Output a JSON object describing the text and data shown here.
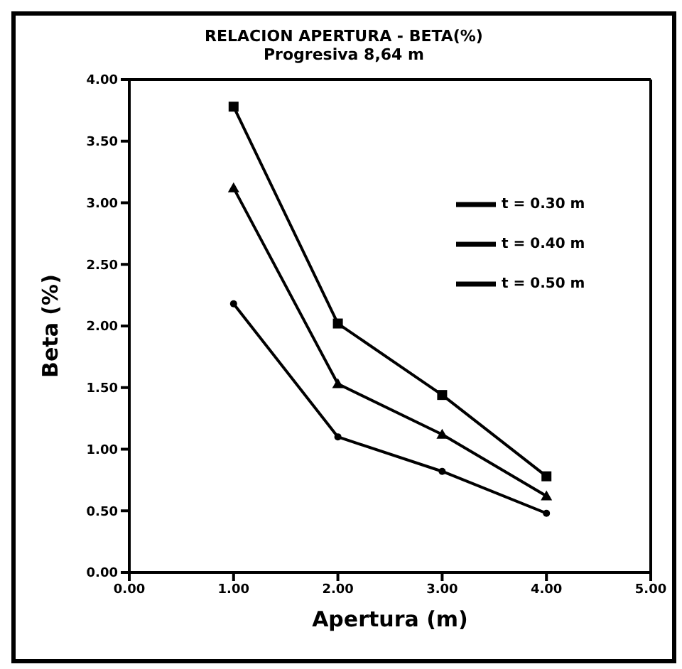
{
  "chart_data": {
    "type": "line",
    "title": "RELACION APERTURA - BETA(%)",
    "subtitle": "Progresiva 8,64 m",
    "xlabel": "Apertura  (m)",
    "ylabel": "Beta  (%)",
    "x": [
      1,
      2,
      3,
      4
    ],
    "series": [
      {
        "name": "t = 0.30 m",
        "color": "#000000",
        "marker": "circle",
        "values": [
          2.18,
          1.1,
          0.82,
          0.48
        ]
      },
      {
        "name": "t = 0.40 m",
        "color": "#000000",
        "marker": "triangle",
        "values": [
          3.12,
          1.53,
          1.12,
          0.62
        ]
      },
      {
        "name": "t = 0.50 m",
        "color": "#000000",
        "marker": "square",
        "values": [
          3.78,
          2.02,
          1.44,
          0.78
        ]
      }
    ],
    "xlim": [
      0,
      5
    ],
    "xticks": [
      {
        "value": 0,
        "label": "0.00"
      },
      {
        "value": 1,
        "label": "1.00"
      },
      {
        "value": 2,
        "label": "2.00"
      },
      {
        "value": 3,
        "label": "3.00"
      },
      {
        "value": 4,
        "label": "4.00"
      },
      {
        "value": 5,
        "label": "5.00"
      }
    ],
    "ylim": [
      0,
      4
    ],
    "yticks": [
      {
        "value": 0,
        "label": "0.00"
      },
      {
        "value": 0.5,
        "label": "0.50"
      },
      {
        "value": 1,
        "label": "1.00"
      },
      {
        "value": 1.5,
        "label": "1.50"
      },
      {
        "value": 2,
        "label": "2.00"
      },
      {
        "value": 2.5,
        "label": "2.50"
      },
      {
        "value": 3,
        "label": "3.00"
      },
      {
        "value": 3.5,
        "label": "3.50"
      },
      {
        "value": 4,
        "label": "4.00"
      }
    ],
    "grid": false,
    "legend": "top right",
    "line_style": "solid"
  }
}
